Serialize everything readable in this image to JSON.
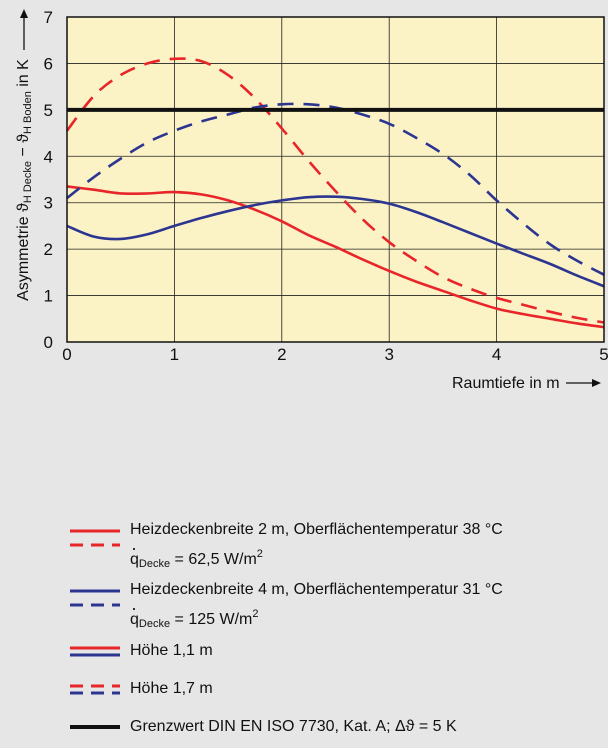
{
  "chart_data": {
    "type": "line",
    "ylabel": "Asymmetrie ϑ",
    "ylabel_sub1": "H Decke",
    "ylabel_mid": " − ϑ",
    "ylabel_sub2": "H Boden",
    "ylabel_unit": " in K",
    "xlabel": "Raumtiefe in m",
    "xlim": [
      0,
      5
    ],
    "ylim": [
      0,
      7
    ],
    "x_ticks": [
      "0",
      "1",
      "2",
      "3",
      "4",
      "5"
    ],
    "y_ticks": [
      "0",
      "1",
      "2",
      "3",
      "4",
      "5",
      "6",
      "7"
    ],
    "grid": true,
    "background": "#fbf2c6",
    "series": [
      {
        "color": "#e8262a",
        "dash": "dashed",
        "x": [
          0,
          0.25,
          0.5,
          0.75,
          1.0,
          1.25,
          1.5,
          1.75,
          2.0,
          2.25,
          2.5,
          2.75,
          3.0,
          3.25,
          3.5,
          3.75,
          4.0,
          4.25,
          4.5,
          4.75,
          5.0
        ],
        "y": [
          4.55,
          5.3,
          5.75,
          6.0,
          6.1,
          6.05,
          5.75,
          5.25,
          4.6,
          3.9,
          3.25,
          2.65,
          2.15,
          1.75,
          1.4,
          1.15,
          0.95,
          0.8,
          0.65,
          0.52,
          0.42
        ]
      },
      {
        "color": "#e8262a",
        "dash": "solid",
        "x": [
          0,
          0.25,
          0.5,
          0.75,
          1.0,
          1.25,
          1.5,
          1.75,
          2.0,
          2.25,
          2.5,
          2.75,
          3.0,
          3.25,
          3.5,
          3.75,
          4.0,
          4.25,
          4.5,
          4.75,
          5.0
        ],
        "y": [
          3.35,
          3.28,
          3.2,
          3.2,
          3.23,
          3.18,
          3.05,
          2.85,
          2.6,
          2.3,
          2.05,
          1.78,
          1.53,
          1.3,
          1.1,
          0.9,
          0.72,
          0.6,
          0.5,
          0.4,
          0.32
        ]
      },
      {
        "color": "#2c3590",
        "dash": "dashed",
        "x": [
          0,
          0.25,
          0.5,
          0.75,
          1.0,
          1.25,
          1.5,
          1.75,
          2.0,
          2.25,
          2.5,
          2.75,
          3.0,
          3.25,
          3.5,
          3.75,
          4.0,
          4.25,
          4.5,
          4.75,
          5.0
        ],
        "y": [
          3.1,
          3.55,
          3.95,
          4.3,
          4.55,
          4.75,
          4.9,
          5.05,
          5.12,
          5.12,
          5.05,
          4.9,
          4.7,
          4.4,
          4.05,
          3.6,
          3.05,
          2.55,
          2.1,
          1.75,
          1.45
        ]
      },
      {
        "color": "#2c3590",
        "dash": "solid",
        "x": [
          0,
          0.25,
          0.5,
          0.75,
          1.0,
          1.25,
          1.5,
          1.75,
          2.0,
          2.25,
          2.5,
          2.75,
          3.0,
          3.25,
          3.5,
          3.75,
          4.0,
          4.25,
          4.5,
          4.75,
          5.0
        ],
        "y": [
          2.5,
          2.27,
          2.22,
          2.32,
          2.5,
          2.67,
          2.82,
          2.95,
          3.05,
          3.12,
          3.13,
          3.08,
          2.98,
          2.8,
          2.58,
          2.35,
          2.12,
          1.9,
          1.68,
          1.43,
          1.2
        ]
      },
      {
        "color": "#111111",
        "dash": "solid",
        "thick": true,
        "x": [
          0,
          5
        ],
        "y": [
          5,
          5
        ]
      }
    ]
  },
  "legend": {
    "red_line1": "Heizdeckenbreite 2 m, Oberflächentemperatur 38 °C",
    "red_q_label": "q",
    "red_q_sub": "Decke",
    "red_q_value": " = 62,5 W/m",
    "red_q_sup": "2",
    "blue_line1": "Heizdeckenbreite 4 m, Oberflächentemperatur 31 °C",
    "blue_q_label": "q",
    "blue_q_sub": "Decke",
    "blue_q_value": " = 125 W/m",
    "blue_q_sup": "2",
    "solid_label": "Höhe 1,1 m",
    "dashed_label": "Höhe 1,7 m",
    "limit_label": "Grenzwert DIN EN ISO 7730, Kat. A; Δϑ = 5 K"
  },
  "colors": {
    "red": "#e8262a",
    "blue": "#2c3590",
    "black": "#111111"
  }
}
